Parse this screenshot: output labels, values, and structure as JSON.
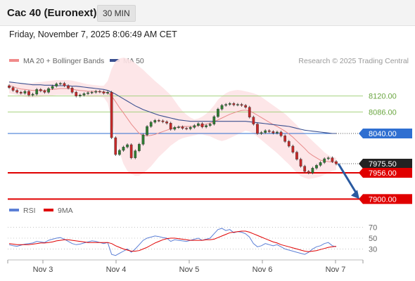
{
  "header": {
    "title": "Cac 40 (Euronext)",
    "timeframe": "30 MIN",
    "datetime": "Friday, November 7, 2025 8:06:49 AM CET"
  },
  "legend": {
    "bollinger_label": "MA 20 + Bollinger Bands",
    "ma50_label": "MA 50",
    "copyright": "Research © 2025 Trading Central"
  },
  "rsi_legend": {
    "rsi_label": "RSI",
    "ma_label": "9MA"
  },
  "colors": {
    "up_candle": "#2e7d32",
    "down_candle": "#c62828",
    "ma20": "#e88a8a",
    "bollinger_fill": "#fde3e5",
    "ma50": "#3a4f8f",
    "support": "#e00000",
    "pivot": "#2f6fd1",
    "resistance": "#a6d27f",
    "current_price": "#222222",
    "rsi": "#5b7fd6",
    "rsi_ma": "#e00000",
    "arrow": "#2a5aa0"
  },
  "chart_data": [
    {
      "type": "candlestick",
      "title": "",
      "x_labels": [
        "Nov 3",
        "Nov 4",
        "Nov 5",
        "Nov 6",
        "Nov 7"
      ],
      "ylim": [
        7890,
        8175
      ],
      "levels": [
        {
          "label": "8120.00",
          "value": 8120.0,
          "kind": "resistance"
        },
        {
          "label": "8086.00",
          "value": 8086.0,
          "kind": "resistance"
        },
        {
          "label": "8040.00",
          "value": 8040.0,
          "kind": "pivot"
        },
        {
          "label": "7975.50",
          "value": 7975.5,
          "kind": "current"
        },
        {
          "label": "7956.00",
          "value": 7956.0,
          "kind": "support"
        },
        {
          "label": "7900.00",
          "value": 7900.0,
          "kind": "support"
        }
      ],
      "closes": [
        8138,
        8132,
        8128,
        8126,
        8130,
        8122,
        8124,
        8134,
        8131,
        8128,
        8136,
        8141,
        8146,
        8147,
        8142,
        8137,
        8128,
        8120,
        8122,
        8125,
        8127,
        8128,
        8130,
        8129,
        8126,
        8128,
        8031,
        7995,
        8004,
        8011,
        8016,
        7988,
        8003,
        8017,
        8037,
        8055,
        8064,
        8068,
        8067,
        8065,
        8062,
        8049,
        8053,
        8054,
        8051,
        8050,
        8053,
        8057,
        8061,
        8054,
        8057,
        8060,
        8076,
        8092,
        8100,
        8102,
        8104,
        8101,
        8102,
        8100,
        8096,
        8075,
        8060,
        8040,
        8042,
        8046,
        8044,
        8041,
        8043,
        8035,
        8023,
        8013,
        8000,
        7985,
        7970,
        7959,
        7956,
        7966,
        7972,
        7978,
        7986,
        7988,
        7980,
        7975
      ],
      "ma20": [
        8142,
        8140,
        8137,
        8135,
        8134,
        8133,
        8132,
        8132,
        8132,
        8132,
        8133,
        8134,
        8135,
        8136,
        8136,
        8136,
        8135,
        8133,
        8132,
        8131,
        8130,
        8130,
        8130,
        8129,
        8129,
        8127,
        8120,
        8108,
        8095,
        8084,
        8072,
        8060,
        8050,
        8040,
        8036,
        8035,
        8036,
        8038,
        8041,
        8044,
        8047,
        8050,
        8052,
        8054,
        8055,
        8055,
        8055,
        8055,
        8057,
        8058,
        8060,
        8062,
        8065,
        8069,
        8073,
        8077,
        8081,
        8084,
        8087,
        8089,
        8090,
        8088,
        8084,
        8079,
        8074,
        8069,
        8064,
        8059,
        8055,
        8050,
        8045,
        8039,
        8032,
        8024,
        8016,
        8008,
        7999,
        7993,
        7988,
        7983,
        7981,
        7980,
        7979,
        7978
      ],
      "bb_upper": [
        8150,
        8148,
        8146,
        8146,
        8146,
        8147,
        8148,
        8149,
        8150,
        8151,
        8152,
        8153,
        8154,
        8154,
        8154,
        8154,
        8153,
        8151,
        8149,
        8147,
        8145,
        8144,
        8143,
        8142,
        8142,
        8152,
        8178,
        8194,
        8200,
        8202,
        8200,
        8196,
        8190,
        8183,
        8176,
        8168,
        8160,
        8152,
        8145,
        8138,
        8130,
        8122,
        8110,
        8098,
        8088,
        8080,
        8074,
        8070,
        8072,
        8076,
        8082,
        8090,
        8100,
        8112,
        8120,
        8126,
        8130,
        8132,
        8133,
        8132,
        8130,
        8128,
        8126,
        8123,
        8118,
        8112,
        8106,
        8100,
        8094,
        8088,
        8082,
        8074,
        8066,
        8058,
        8048,
        8040,
        8032,
        8024,
        8016,
        8008,
        8000,
        7994,
        7990,
        7988
      ],
      "bb_lower": [
        8126,
        8124,
        8122,
        8120,
        8118,
        8117,
        8117,
        8117,
        8118,
        8119,
        8120,
        8121,
        8122,
        8122,
        8122,
        8122,
        8122,
        8121,
        8120,
        8119,
        8118,
        8118,
        8118,
        8118,
        8117,
        8105,
        8070,
        8030,
        8000,
        7975,
        7960,
        7953,
        7950,
        7950,
        7955,
        7962,
        7970,
        7980,
        7990,
        7998,
        8006,
        8014,
        8020,
        8026,
        8030,
        8032,
        8034,
        8036,
        8038,
        8038,
        8036,
        8034,
        8030,
        8026,
        8024,
        8026,
        8030,
        8034,
        8038,
        8042,
        8046,
        8044,
        8040,
        8033,
        8026,
        8019,
        8012,
        8005,
        7998,
        7990,
        7982,
        7974,
        7965,
        7956,
        7949,
        7945,
        7943,
        7944,
        7946,
        7948,
        7952,
        7956,
        7960,
        7962
      ],
      "ma50": [
        8150,
        8149,
        8148,
        8147,
        8146,
        8145,
        8144,
        8144,
        8144,
        8143,
        8143,
        8143,
        8142,
        8142,
        8142,
        8142,
        8141,
        8141,
        8140,
        8139,
        8138,
        8137,
        8136,
        8135,
        8134,
        8132,
        8128,
        8124,
        8119,
        8114,
        8109,
        8104,
        8099,
        8095,
        8091,
        8088,
        8085,
        8082,
        8079,
        8077,
        8075,
        8073,
        8071,
        8069,
        8068,
        8067,
        8066,
        8066,
        8066,
        8066,
        8066,
        8066,
        8066,
        8066,
        8066,
        8066,
        8066,
        8066,
        8066,
        8066,
        8066,
        8065,
        8064,
        8063,
        8062,
        8061,
        8060,
        8059,
        8058,
        8057,
        8056,
        8055,
        8053,
        8051,
        8049,
        8047,
        8046,
        8045,
        8044,
        8043,
        8042,
        8041,
        8040,
        8040
      ]
    },
    {
      "type": "line",
      "title": "",
      "yticks": [
        30,
        50,
        70
      ],
      "ylim": [
        15,
        85
      ],
      "series": [
        {
          "name": "RSI",
          "values": [
            38,
            36,
            35,
            37,
            39,
            40,
            41,
            44,
            43,
            42,
            46,
            48,
            50,
            51,
            48,
            44,
            40,
            38,
            39,
            41,
            43,
            45,
            44,
            42,
            40,
            42,
            20,
            18,
            22,
            26,
            30,
            24,
            30,
            38,
            46,
            50,
            52,
            54,
            53,
            51,
            50,
            44,
            47,
            46,
            45,
            44,
            46,
            48,
            50,
            46,
            48,
            50,
            58,
            66,
            68,
            64,
            66,
            60,
            62,
            61,
            58,
            52,
            40,
            34,
            36,
            40,
            38,
            36,
            38,
            34,
            30,
            28,
            26,
            24,
            22,
            20,
            24,
            30,
            34,
            36,
            40,
            42,
            36,
            34
          ]
        },
        {
          "name": "9MA",
          "values": [
            40,
            39,
            38,
            38,
            38,
            38,
            39,
            40,
            41,
            41,
            42,
            43,
            45,
            46,
            47,
            47,
            46,
            45,
            44,
            43,
            42,
            42,
            42,
            42,
            42,
            42,
            40,
            36,
            33,
            30,
            28,
            26,
            26,
            27,
            30,
            33,
            37,
            41,
            44,
            47,
            49,
            50,
            50,
            49,
            48,
            47,
            46,
            46,
            46,
            46,
            47,
            47,
            48,
            51,
            54,
            57,
            60,
            61,
            62,
            63,
            63,
            61,
            58,
            55,
            52,
            49,
            46,
            43,
            41,
            38,
            36,
            34,
            32,
            30,
            28,
            26,
            25,
            26,
            27,
            29,
            31,
            33,
            34,
            35
          ]
        }
      ]
    }
  ]
}
